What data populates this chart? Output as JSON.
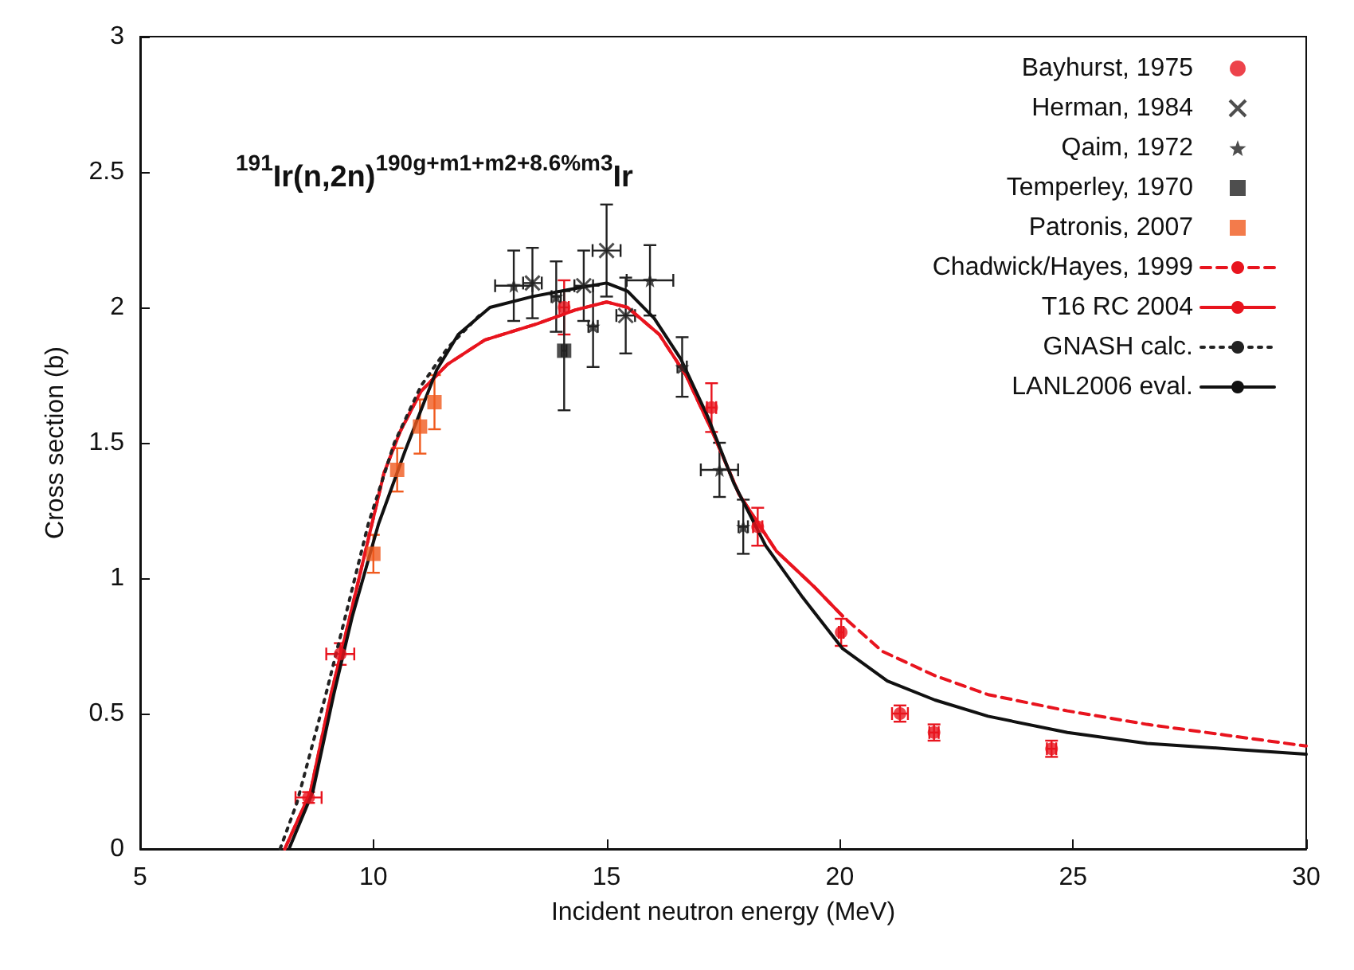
{
  "chart_data": {
    "type": "scatter",
    "title": "$^{191}$Ir(n,2n)$^{190g+m1+m2+8.6%m3}$Ir",
    "xlabel": "Incident neutron energy (MeV)",
    "ylabel": "Cross section (b)",
    "xlim": [
      5,
      30
    ],
    "xticks": [
      5,
      10,
      15,
      20,
      25,
      30
    ],
    "ylim": [
      0,
      3
    ],
    "yticks": [
      0,
      0.5,
      1,
      1.5,
      2,
      2.5,
      3
    ],
    "grid": false,
    "legend": "top right",
    "series": [
      {
        "name": "Bayhurst, 1975",
        "marker": "circle",
        "color": "#e8141e",
        "x": [
          8.61,
          9.29,
          14.09,
          17.25,
          18.24,
          20.03,
          21.29,
          22.02,
          24.54
        ],
        "values": [
          0.19,
          0.72,
          2.0,
          1.63,
          1.19,
          0.8,
          0.5,
          0.43,
          0.37
        ],
        "errors": [
          0.02,
          0.04,
          0.1,
          0.09,
          0.07,
          0.05,
          0.03,
          0.03,
          0.03
        ],
        "xerrors": [
          0.28,
          0.3,
          0.1,
          0.1,
          0.1,
          0.05,
          0.17,
          0.1,
          0.1
        ]
      },
      {
        "name": "Herman, 1984",
        "marker": "cross",
        "color": "#222222",
        "x": [
          13.41,
          14.51,
          15.0,
          15.41
        ],
        "values": [
          2.09,
          2.08,
          2.21,
          1.97
        ],
        "errors": [
          0.13,
          0.13,
          0.17,
          0.14
        ],
        "xerrors": [
          0.2,
          0.2,
          0.3,
          0.2
        ]
      },
      {
        "name": "Qaim, 1972",
        "marker": "star",
        "color": "#222222",
        "x": [
          13.01,
          13.92,
          14.71,
          15.93,
          16.62,
          17.42,
          17.93
        ],
        "values": [
          2.08,
          2.04,
          1.93,
          2.1,
          1.78,
          1.4,
          1.19
        ],
        "errors": [
          0.13,
          0.13,
          0.15,
          0.13,
          0.11,
          0.1,
          0.1
        ],
        "xerrors": [
          0.4,
          0.1,
          0.1,
          0.5,
          0.1,
          0.4,
          0.1
        ]
      },
      {
        "name": "Temperley, 1970",
        "marker": "square",
        "color": "#222222",
        "x": [
          14.09
        ],
        "values": [
          1.84
        ],
        "errors": [
          0.22
        ],
        "xerrors": [
          0.05
        ]
      },
      {
        "name": "Patronis, 2007",
        "marker": "square",
        "color": "#f05a1e",
        "x": [
          10.0,
          10.51,
          11.0,
          11.31
        ],
        "values": [
          1.09,
          1.4,
          1.56,
          1.65
        ],
        "errors": [
          0.07,
          0.08,
          0.1,
          0.1
        ]
      },
      {
        "name": "Chadwick/Hayes, 1999",
        "type": "line",
        "line_style": "dashed",
        "color": "#e8141e",
        "x": [
          8.1,
          8.65,
          9.09,
          9.5,
          10.23,
          10.57,
          11.02,
          11.59,
          12.39,
          13.52,
          14.32,
          15.0,
          15.45,
          16.13,
          16.7,
          17.27,
          17.84,
          18.64,
          19.44,
          20.06,
          20.91,
          22.04,
          23.18,
          24.88,
          26.59,
          28.29,
          30
        ],
        "values": [
          0,
          0.21,
          0.57,
          0.86,
          1.39,
          1.54,
          1.69,
          1.79,
          1.88,
          1.94,
          1.99,
          2.02,
          2.0,
          1.9,
          1.75,
          1.54,
          1.31,
          1.1,
          0.97,
          0.86,
          0.73,
          0.64,
          0.57,
          0.51,
          0.46,
          0.42,
          0.38
        ]
      },
      {
        "name": "T16 RC 2004",
        "type": "line",
        "line_style": "solid",
        "color": "#e8141e",
        "x": [
          8.1,
          8.65,
          9.09,
          9.5,
          10.23,
          10.57,
          11.02,
          11.59,
          12.39,
          13.52,
          14.32,
          15.0,
          15.45,
          16.13,
          16.7,
          17.27,
          17.84,
          18.64,
          19.44,
          20.06
        ],
        "values": [
          0,
          0.21,
          0.57,
          0.86,
          1.39,
          1.54,
          1.69,
          1.79,
          1.88,
          1.94,
          1.99,
          2.02,
          2.0,
          1.9,
          1.75,
          1.54,
          1.31,
          1.1,
          0.97,
          0.86
        ]
      },
      {
        "name": "GNASH calc.",
        "type": "line",
        "line_style": "dotted",
        "color": "#222222",
        "x": [
          8.0,
          8.36,
          8.98,
          9.43,
          9.89,
          10.45,
          11.02,
          11.59,
          12.27
        ],
        "values": [
          0,
          0.17,
          0.57,
          0.88,
          1.2,
          1.5,
          1.71,
          1.85,
          1.97
        ]
      },
      {
        "name": "LANL2006 eval.",
        "type": "line",
        "line_style": "solid",
        "color": "#111111",
        "x": [
          8.19,
          8.7,
          9.15,
          9.55,
          10.11,
          10.68,
          11.36,
          11.82,
          12.5,
          13.41,
          14.32,
          15.0,
          15.45,
          16.02,
          16.59,
          17.16,
          17.73,
          18.41,
          19.2,
          20.06,
          21.02,
          22.04,
          23.18,
          24.88,
          26.59,
          28.29,
          30
        ],
        "values": [
          0,
          0.21,
          0.57,
          0.86,
          1.2,
          1.47,
          1.77,
          1.9,
          2.0,
          2.04,
          2.07,
          2.09,
          2.06,
          1.96,
          1.81,
          1.6,
          1.35,
          1.12,
          0.93,
          0.74,
          0.62,
          0.55,
          0.49,
          0.43,
          0.39,
          0.37,
          0.35
        ]
      }
    ]
  }
}
